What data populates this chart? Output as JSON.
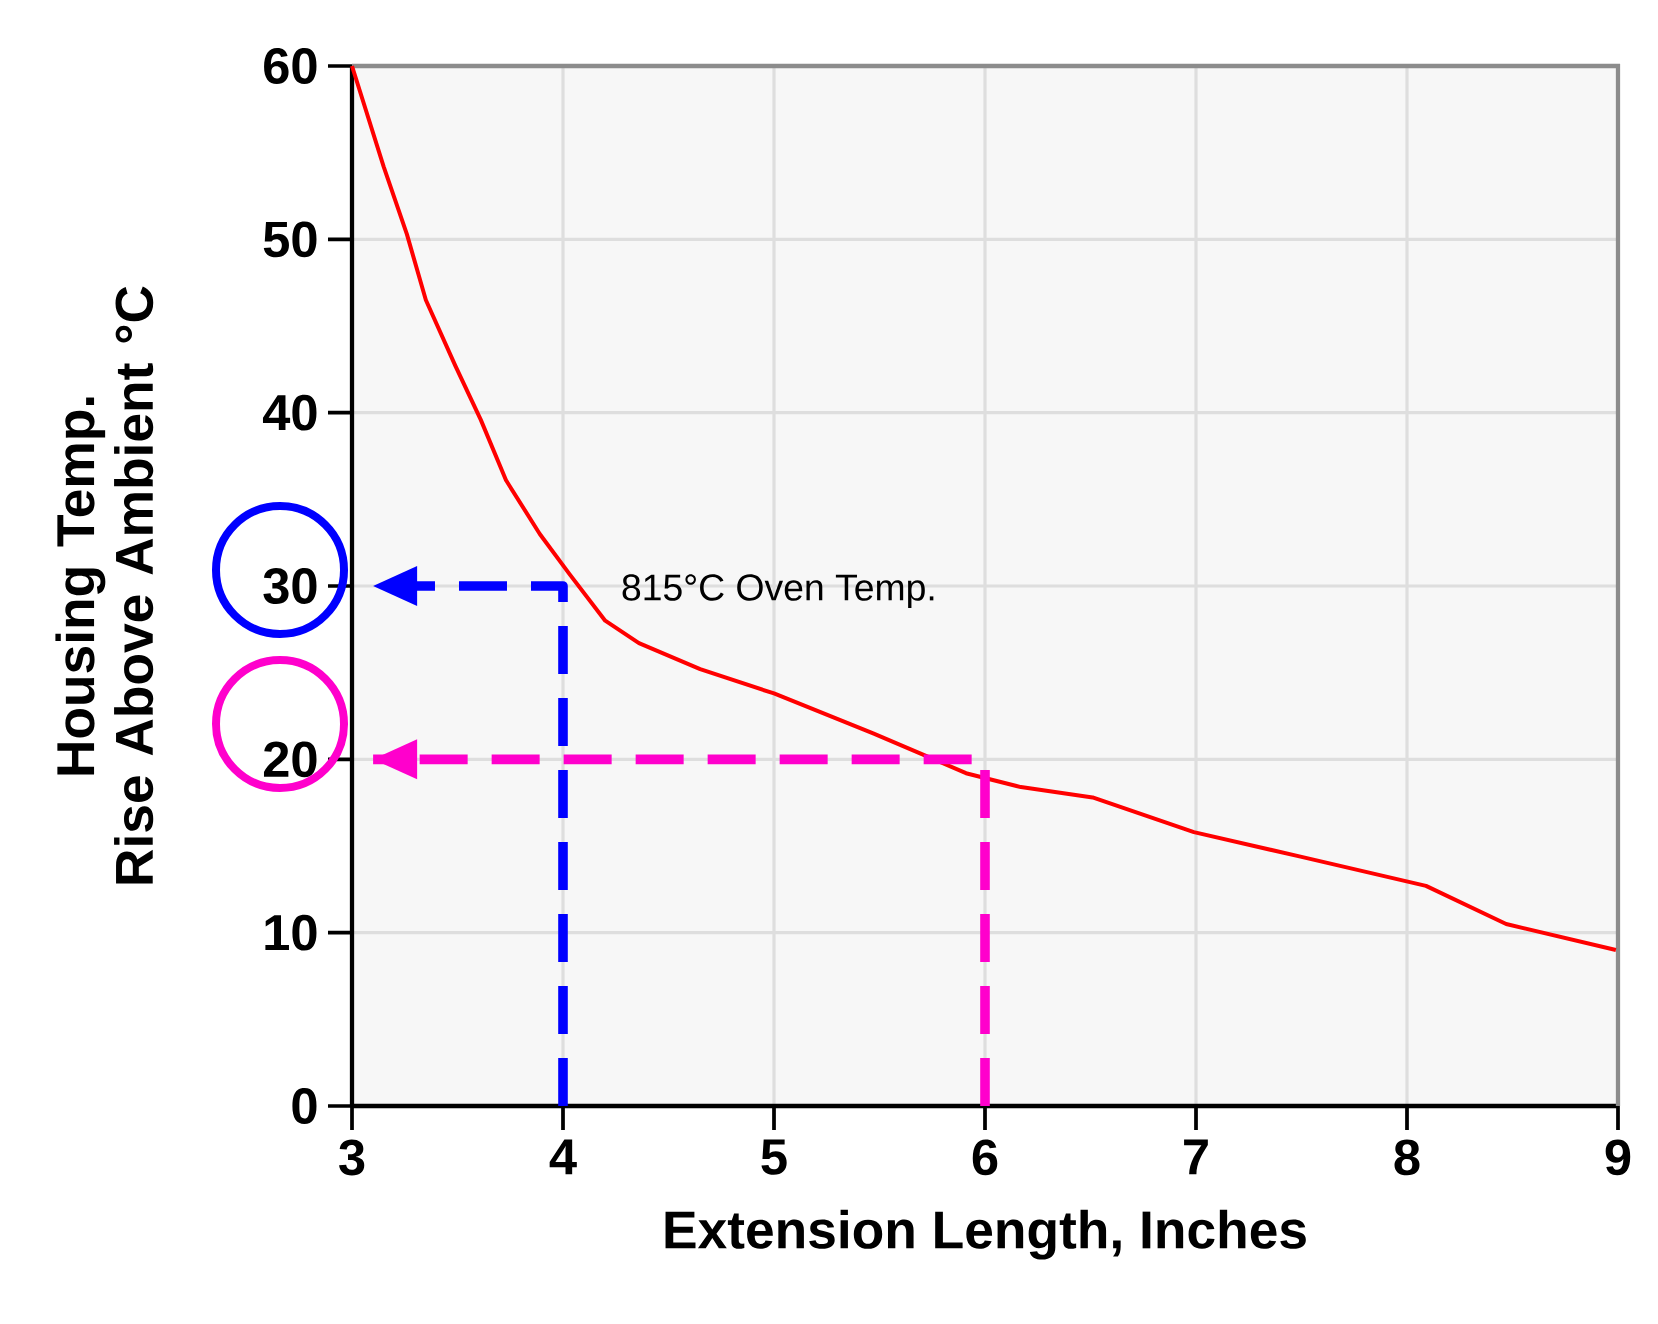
{
  "chart_data": {
    "type": "line",
    "xlabel": "Extension Length, Inches",
    "ylabel": "Housing Temp.\nRise Above Ambient °C",
    "xlim": [
      3,
      9
    ],
    "ylim": [
      0,
      60
    ],
    "xticks": [
      3,
      4,
      5,
      6,
      7,
      8,
      9
    ],
    "yticks": [
      0,
      10,
      20,
      30,
      40,
      50,
      60
    ],
    "grid": true,
    "annotations": [
      "815°C Oven Temp."
    ],
    "series": [
      {
        "color": "#ff0000",
        "line_style": "solid",
        "x": [
          3,
          3.15,
          3.26,
          3.35,
          3.49,
          3.61,
          3.73,
          3.89,
          4.03,
          4.2,
          4.36,
          4.65,
          5.0,
          5.47,
          5.72,
          5.91,
          6.17,
          6.51,
          6.99,
          7.49,
          8.09,
          8.47,
          8.99
        ],
        "values": [
          60,
          54.2,
          50.3,
          46.5,
          42.7,
          39.6,
          36.1,
          33.0,
          30.7,
          28.0,
          26.7,
          25.2,
          23.8,
          21.5,
          20.2,
          19.2,
          18.4,
          17.8,
          15.8,
          14.4,
          12.7,
          10.5,
          9.0
        ]
      },
      {
        "color": "#0000ff",
        "line_style": "dashed",
        "x": [
          4,
          4,
          3.1
        ],
        "values": [
          0,
          30,
          30
        ]
      },
      {
        "color": "#ff00cc",
        "line_style": "dashed",
        "x": [
          6,
          6,
          3.1
        ],
        "values": [
          0,
          20,
          20
        ]
      }
    ]
  }
}
